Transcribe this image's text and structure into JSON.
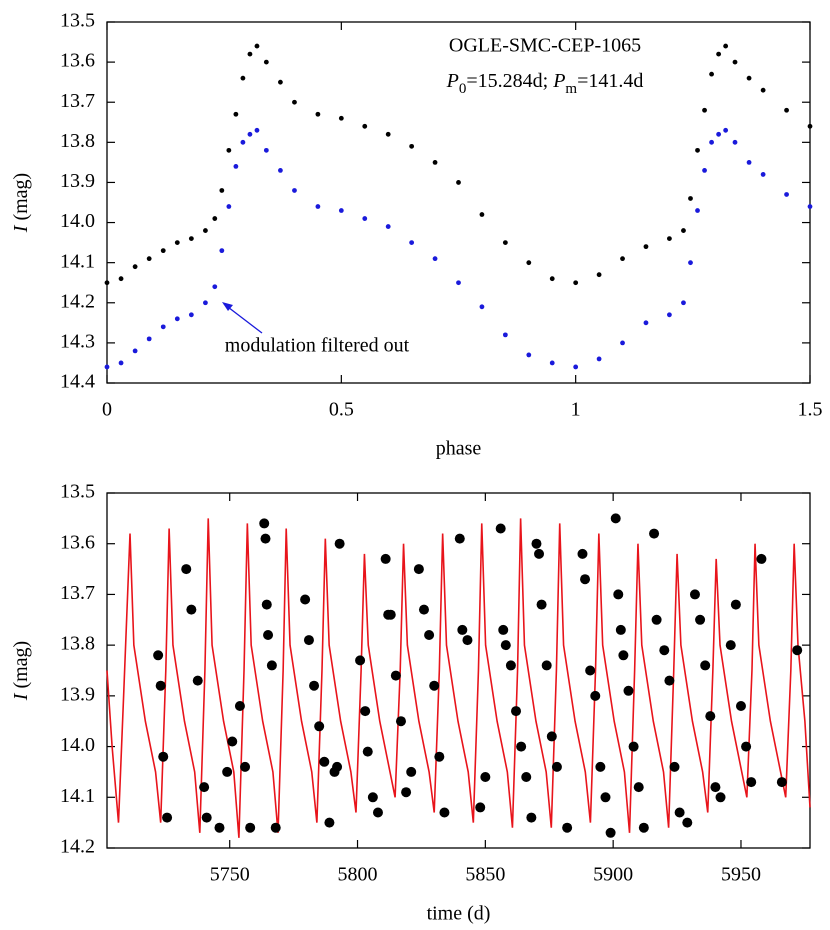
{
  "chart_data": [
    {
      "type": "scatter",
      "xlabel": "phase",
      "ylabel": [
        {
          "text": "I",
          "style": "italic"
        },
        {
          "text": " (mag)",
          "style": "normal"
        }
      ],
      "annotation_title": "OGLE-SMC-CEP-1065",
      "annotation_periods": [
        {
          "text": "P",
          "style": "italic"
        },
        {
          "text": "0",
          "style": "sub"
        },
        {
          "text": "=15.284d; ",
          "style": "normal"
        },
        {
          "text": "P",
          "style": "italic"
        },
        {
          "text": "m",
          "style": "sub"
        },
        {
          "text": "=141.4d",
          "style": "normal"
        }
      ],
      "arrow_annotation": "modulation filtered out",
      "arrow_annotation_color": "#1a1adb",
      "xlim": [
        0,
        1.5
      ],
      "xticks": [
        0,
        0.5,
        1,
        1.5
      ],
      "ylim": [
        13.5,
        14.4
      ],
      "y_inverted": true,
      "yticks": [
        13.5,
        13.6,
        13.7,
        13.8,
        13.9,
        {
          "value": 14,
          "label": "14.0"
        },
        14.1,
        14.2,
        14.3,
        14.4
      ],
      "series": [
        {
          "color": "#000000",
          "x": [
            0,
            0.03,
            0.06,
            0.09,
            0.12,
            0.15,
            0.18,
            0.21,
            0.23,
            0.245,
            0.26,
            0.275,
            0.29,
            0.305,
            0.32,
            0.34,
            0.37,
            0.4,
            0.45,
            0.5,
            0.55,
            0.6,
            0.65,
            0.7,
            0.75,
            0.8,
            0.85,
            0.9,
            0.95,
            1.0,
            1.05,
            1.1,
            1.15,
            1.2,
            1.23,
            1.245,
            1.26,
            1.275,
            1.29,
            1.305,
            1.32,
            1.34,
            1.37,
            1.4,
            1.45,
            1.5
          ],
          "values": [
            14.15,
            14.14,
            14.11,
            14.09,
            14.07,
            14.05,
            14.04,
            14.02,
            13.99,
            13.92,
            13.82,
            13.73,
            13.64,
            13.58,
            13.56,
            13.6,
            13.65,
            13.7,
            13.73,
            13.74,
            13.76,
            13.78,
            13.81,
            13.85,
            13.9,
            13.98,
            14.05,
            14.1,
            14.14,
            14.15,
            14.13,
            14.09,
            14.06,
            14.04,
            14.02,
            13.94,
            13.82,
            13.72,
            13.63,
            13.58,
            13.56,
            13.6,
            13.64,
            13.67,
            13.72,
            13.76
          ]
        },
        {
          "color": "#1a1adb",
          "x": [
            0,
            0.03,
            0.06,
            0.09,
            0.12,
            0.15,
            0.18,
            0.21,
            0.23,
            0.245,
            0.26,
            0.275,
            0.29,
            0.305,
            0.32,
            0.34,
            0.37,
            0.4,
            0.45,
            0.5,
            0.55,
            0.6,
            0.65,
            0.7,
            0.75,
            0.8,
            0.85,
            0.9,
            0.95,
            1.0,
            1.05,
            1.1,
            1.15,
            1.2,
            1.23,
            1.245,
            1.26,
            1.275,
            1.29,
            1.305,
            1.32,
            1.34,
            1.37,
            1.4,
            1.45,
            1.5
          ],
          "values": [
            14.36,
            14.35,
            14.32,
            14.29,
            14.26,
            14.24,
            14.23,
            14.2,
            14.16,
            14.07,
            13.96,
            13.86,
            13.8,
            13.78,
            13.77,
            13.82,
            13.87,
            13.92,
            13.96,
            13.97,
            13.99,
            14.01,
            14.05,
            14.09,
            14.15,
            14.21,
            14.28,
            14.33,
            14.35,
            14.36,
            14.34,
            14.3,
            14.25,
            14.23,
            14.2,
            14.1,
            13.97,
            13.87,
            13.8,
            13.78,
            13.77,
            13.8,
            13.85,
            13.88,
            13.93,
            13.96
          ]
        }
      ]
    },
    {
      "type": "line",
      "xlabel": "time (d)",
      "ylabel": [
        {
          "text": "I",
          "style": "italic"
        },
        {
          "text": " (mag)",
          "style": "normal"
        }
      ],
      "xlim": [
        5702,
        5977
      ],
      "xticks": [
        5750,
        5800,
        5850,
        5900,
        5950
      ],
      "ylim": [
        13.5,
        14.2
      ],
      "y_inverted": true,
      "yticks": [
        13.5,
        13.6,
        13.7,
        13.8,
        13.9,
        {
          "value": 14,
          "label": "14.0"
        },
        14.1,
        14.2
      ],
      "series": [
        {
          "kind": "line",
          "color": "#e8141b",
          "x": [
            5702,
            5704,
            5706.5,
            5708.5,
            5711.0,
            5712.5,
            5717.0,
            5721.0,
            5723.0,
            5725.0,
            5726.3,
            5727.8,
            5732.3,
            5736.3,
            5738.3,
            5740.3,
            5741.6,
            5743.1,
            5747.6,
            5751.6,
            5753.6,
            5755.6,
            5756.9,
            5758.4,
            5762.9,
            5766.9,
            5768.9,
            5770.9,
            5772.1,
            5773.6,
            5778.1,
            5782.1,
            5784.1,
            5786.1,
            5787.4,
            5788.9,
            5793.4,
            5797.4,
            5799.4,
            5801.4,
            5802.7,
            5804.2,
            5808.7,
            5812.7,
            5814.7,
            5816.7,
            5818.0,
            5819.5,
            5824.0,
            5828.0,
            5830.0,
            5832.0,
            5833.3,
            5834.8,
            5839.3,
            5843.3,
            5845.3,
            5847.3,
            5848.6,
            5850.1,
            5854.6,
            5858.6,
            5860.6,
            5862.6,
            5863.8,
            5865.3,
            5869.8,
            5873.8,
            5875.8,
            5877.8,
            5879.1,
            5880.6,
            5885.1,
            5889.1,
            5891.1,
            5893.1,
            5894.4,
            5895.9,
            5900.4,
            5904.4,
            5906.4,
            5908.4,
            5909.7,
            5911.2,
            5915.7,
            5919.7,
            5921.7,
            5923.7,
            5925.0,
            5926.5,
            5931.0,
            5935.0,
            5937.0,
            5939.0,
            5940.3,
            5941.8,
            5946.3,
            5950.3,
            5952.3,
            5954.3,
            5955.5,
            5957.0,
            5961.5,
            5965.5,
            5967.5,
            5969.5,
            5970.8,
            5972.3,
            5975.0,
            5977.0
          ],
          "values": [
            13.85,
            14.0,
            14.15,
            13.9,
            13.58,
            13.8,
            13.95,
            14.05,
            14.15,
            13.85,
            13.57,
            13.8,
            13.95,
            14.05,
            14.17,
            13.85,
            13.55,
            13.8,
            13.95,
            14.05,
            14.18,
            13.85,
            13.56,
            13.8,
            13.95,
            14.05,
            14.17,
            13.85,
            13.57,
            13.8,
            13.95,
            14.05,
            14.15,
            13.85,
            13.59,
            13.8,
            13.95,
            14.05,
            14.13,
            13.85,
            13.62,
            13.8,
            13.95,
            14.05,
            14.1,
            13.85,
            13.6,
            13.8,
            13.95,
            14.05,
            14.13,
            13.85,
            13.58,
            13.8,
            13.95,
            14.05,
            14.15,
            13.85,
            13.56,
            13.8,
            13.95,
            14.05,
            14.16,
            13.85,
            13.55,
            13.8,
            13.95,
            14.05,
            14.16,
            13.85,
            13.56,
            13.8,
            13.95,
            14.05,
            14.15,
            13.85,
            13.58,
            13.8,
            13.95,
            14.05,
            14.17,
            13.85,
            13.6,
            13.8,
            13.95,
            14.05,
            14.16,
            13.85,
            13.62,
            13.8,
            13.95,
            14.05,
            14.13,
            13.85,
            13.63,
            13.8,
            13.95,
            14.05,
            14.1,
            13.85,
            13.6,
            13.8,
            13.95,
            14.05,
            14.1,
            13.85,
            13.6,
            13.8,
            13.95,
            14.12
          ]
        },
        {
          "kind": "scatter",
          "color": "#000000",
          "x": [
            5722,
            5723,
            5724,
            5725.5,
            5733,
            5735,
            5737.5,
            5740,
            5741,
            5746,
            5749,
            5751,
            5754,
            5756,
            5758,
            5763.5,
            5764,
            5764.5,
            5765,
            5766.5,
            5768,
            5779.5,
            5781,
            5783,
            5785,
            5787,
            5789,
            5793,
            5792,
            5791,
            5801,
            5803,
            5804,
            5806,
            5808,
            5811,
            5812,
            5813,
            5815,
            5817,
            5819,
            5821,
            5824,
            5826,
            5828,
            5830,
            5832,
            5834,
            5840,
            5841,
            5843,
            5848,
            5850,
            5856,
            5857,
            5858,
            5860,
            5862,
            5864,
            5866,
            5868,
            5870,
            5871,
            5872,
            5874,
            5876,
            5878,
            5882,
            5888,
            5889,
            5891,
            5893,
            5895,
            5897,
            5899,
            5901,
            5902,
            5903,
            5904,
            5906,
            5908,
            5910,
            5912,
            5916,
            5917,
            5920,
            5922,
            5924,
            5926,
            5929,
            5932,
            5934,
            5936,
            5938,
            5940,
            5942,
            5946,
            5948,
            5950,
            5952,
            5954,
            5958,
            5966,
            5972
          ],
          "values": [
            13.82,
            13.88,
            14.02,
            14.14,
            13.65,
            13.73,
            13.87,
            14.08,
            14.14,
            14.16,
            14.05,
            13.99,
            13.92,
            14.04,
            14.16,
            13.56,
            13.59,
            13.72,
            13.78,
            13.84,
            14.16,
            13.71,
            13.79,
            13.88,
            13.96,
            14.03,
            14.15,
            13.6,
            14.04,
            14.05,
            13.83,
            13.93,
            14.01,
            14.1,
            14.13,
            13.63,
            13.74,
            13.74,
            13.86,
            13.95,
            14.09,
            14.05,
            13.65,
            13.73,
            13.78,
            13.88,
            14.02,
            14.13,
            13.59,
            13.77,
            13.79,
            14.12,
            14.06,
            13.57,
            13.77,
            13.8,
            13.84,
            13.93,
            14.0,
            14.06,
            14.14,
            13.6,
            13.62,
            13.72,
            13.84,
            13.98,
            14.04,
            14.16,
            13.62,
            13.67,
            13.85,
            13.9,
            14.04,
            14.1,
            14.17,
            13.55,
            13.7,
            13.77,
            13.82,
            13.89,
            14.0,
            14.08,
            14.16,
            13.58,
            13.75,
            13.81,
            13.87,
            14.04,
            14.13,
            14.15,
            13.7,
            13.75,
            13.84,
            13.94,
            14.08,
            14.1,
            13.8,
            13.72,
            13.92,
            14.0,
            14.07,
            13.63,
            14.07,
            13.81
          ]
        }
      ]
    }
  ]
}
